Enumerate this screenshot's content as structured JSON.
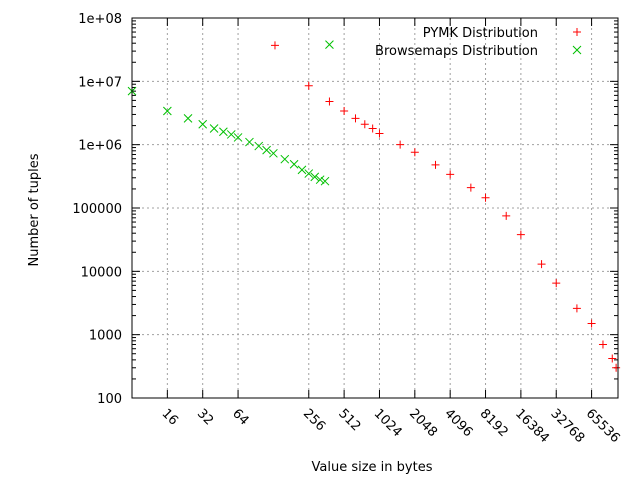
{
  "chart_data": {
    "type": "scatter",
    "xlabel": "Value size in bytes",
    "ylabel": "Number of tuples",
    "x_scale": "log2",
    "y_scale": "log10",
    "xlim": [
      8,
      110000
    ],
    "ylim": [
      100,
      100000000
    ],
    "x_ticks": [
      16,
      32,
      64,
      256,
      512,
      1024,
      2048,
      4096,
      8192,
      16384,
      32768,
      65536
    ],
    "x_tick_labels": [
      "16",
      "32",
      "64",
      "256",
      "512",
      "1024",
      "2048",
      "4096",
      "8192",
      "16384",
      "32768",
      "65536"
    ],
    "y_ticks": [
      100,
      1000,
      10000,
      100000,
      1000000,
      10000000,
      100000000
    ],
    "y_tick_labels": [
      "100",
      "1000",
      "10000",
      "100000",
      "1e+06",
      "1e+07",
      "1e+08"
    ],
    "grid": true,
    "legend_position": "top-right",
    "series": [
      {
        "name": "PYMK Distribution",
        "marker": "plus",
        "color": "#ff0000",
        "points": [
          [
            132,
            37000000
          ],
          [
            256,
            8500000
          ],
          [
            384,
            4800000
          ],
          [
            512,
            3400000
          ],
          [
            640,
            2600000
          ],
          [
            768,
            2100000
          ],
          [
            896,
            1800000
          ],
          [
            1024,
            1500000
          ],
          [
            1536,
            1000000
          ],
          [
            2048,
            760000
          ],
          [
            3072,
            480000
          ],
          [
            4096,
            340000
          ],
          [
            6144,
            210000
          ],
          [
            8192,
            145000
          ],
          [
            12288,
            75000
          ],
          [
            16384,
            38000
          ],
          [
            24576,
            13000
          ],
          [
            32768,
            6500
          ],
          [
            49152,
            2600
          ],
          [
            65536,
            1500
          ],
          [
            81920,
            700
          ],
          [
            98304,
            420
          ],
          [
            106000,
            300
          ]
        ]
      },
      {
        "name": "Browsemaps Distribution",
        "marker": "cross",
        "color": "#00c000",
        "points": [
          [
            8,
            7000000
          ],
          [
            16,
            3400000
          ],
          [
            24,
            2600000
          ],
          [
            32,
            2100000
          ],
          [
            40,
            1800000
          ],
          [
            48,
            1600000
          ],
          [
            56,
            1450000
          ],
          [
            64,
            1300000
          ],
          [
            80,
            1100000
          ],
          [
            96,
            950000
          ],
          [
            112,
            820000
          ],
          [
            128,
            730000
          ],
          [
            160,
            590000
          ],
          [
            192,
            490000
          ],
          [
            224,
            400000
          ],
          [
            256,
            350000
          ],
          [
            288,
            310000
          ],
          [
            320,
            280000
          ],
          [
            352,
            265000
          ],
          [
            384,
            38000000
          ]
        ]
      }
    ]
  }
}
